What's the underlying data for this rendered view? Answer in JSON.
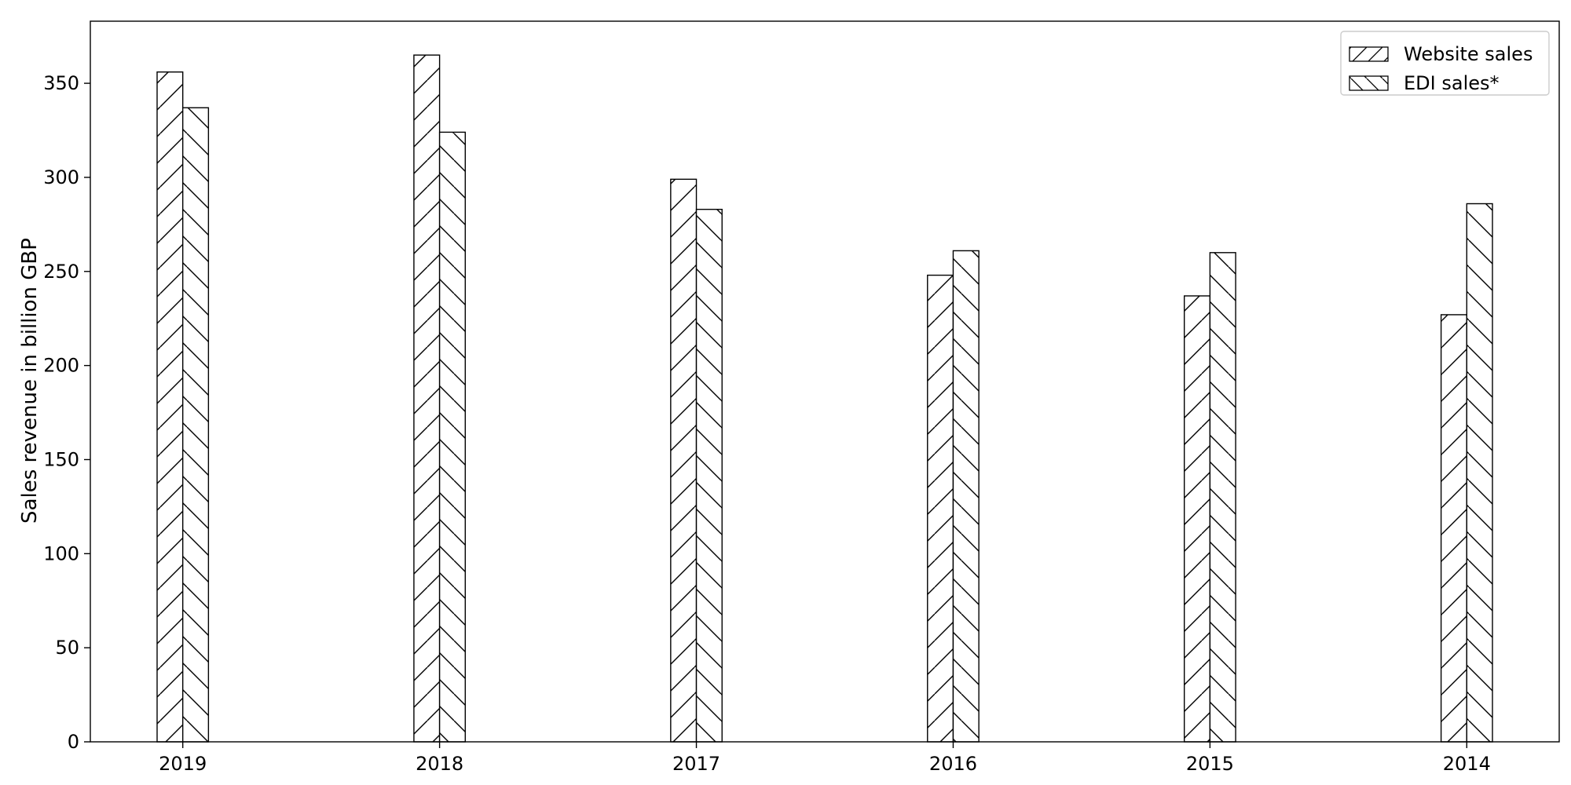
{
  "chart_data": {
    "type": "bar",
    "title": "",
    "xlabel": "",
    "ylabel": "Sales revenue in billion GBP",
    "categories": [
      "2019",
      "2018",
      "2017",
      "2016",
      "2015",
      "2014"
    ],
    "series": [
      {
        "name": "Website sales",
        "values": [
          356,
          365,
          299,
          248,
          237,
          227
        ],
        "hatch": "forward-diagonal"
      },
      {
        "name": "EDI sales*",
        "values": [
          337,
          324,
          283,
          261,
          260,
          286
        ],
        "hatch": "back-diagonal"
      }
    ],
    "ylim": [
      0,
      383
    ],
    "yticks": [
      0,
      50,
      100,
      150,
      200,
      250,
      300,
      350
    ],
    "grid": false,
    "legend_position": "top-right",
    "colors": {
      "bar_fill": "#ffffff",
      "bar_edge": "#000000",
      "text": "#000000",
      "axis": "#000000"
    }
  }
}
